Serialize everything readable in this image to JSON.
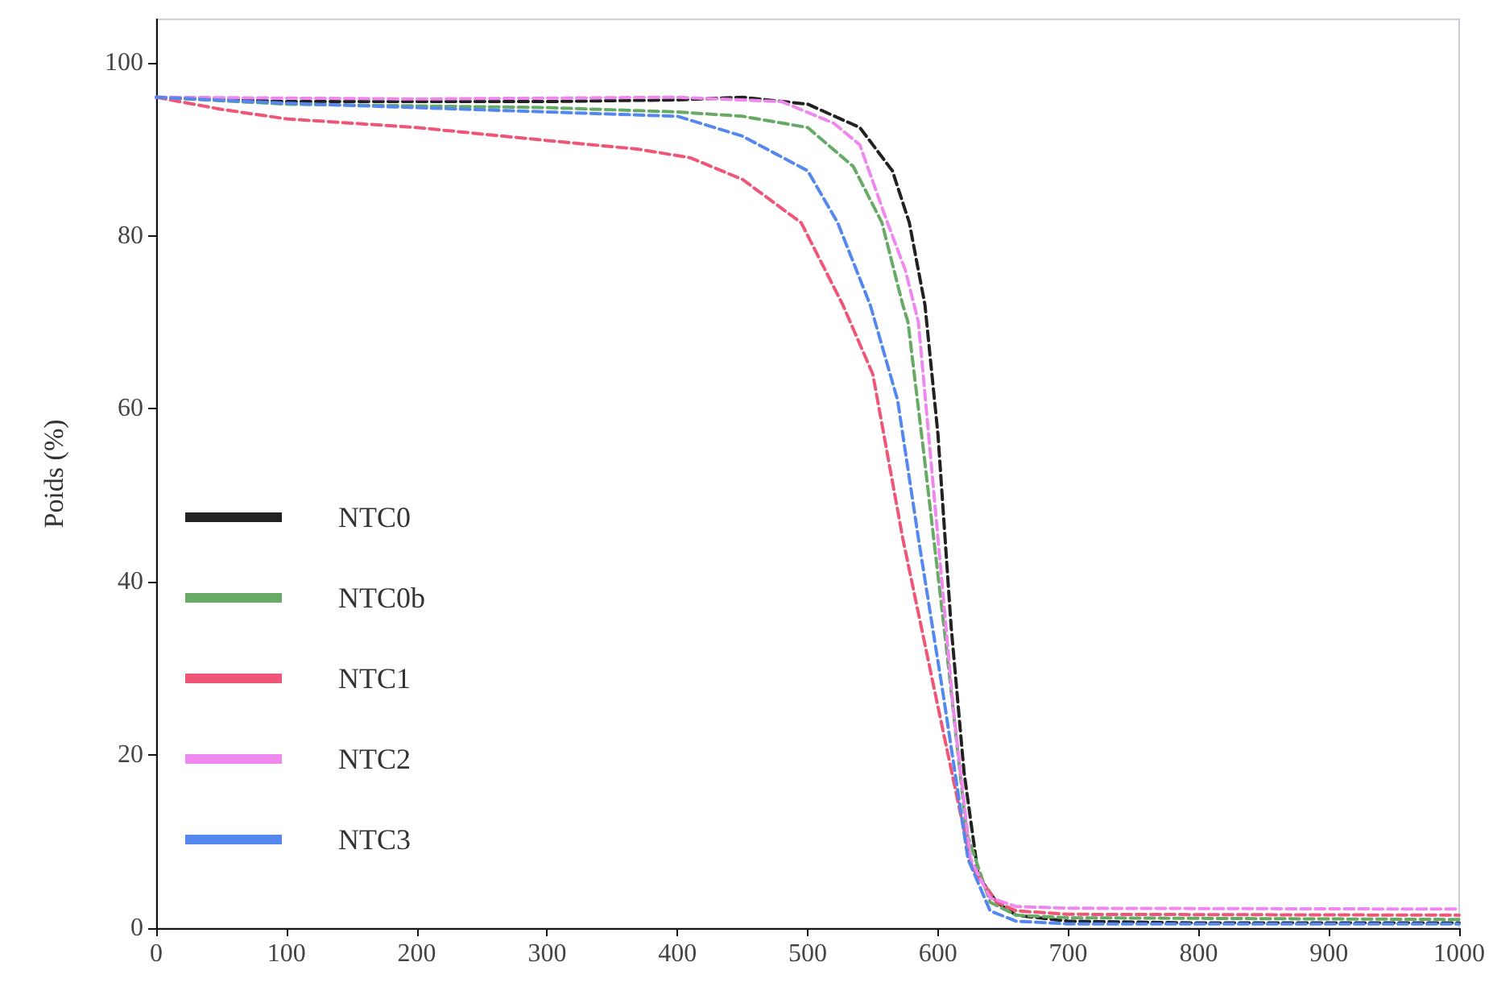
{
  "chart_data": {
    "type": "line",
    "ylabel": "Poids (%)",
    "xlim": [
      0,
      1000
    ],
    "xticks": [
      0,
      100,
      200,
      300,
      400,
      500,
      600,
      700,
      800,
      900,
      1000
    ],
    "ylim": [
      0,
      105
    ],
    "yticks": [
      0,
      20,
      40,
      60,
      80,
      100
    ],
    "grid": false,
    "legend": "bottom left",
    "line_style": "dashed",
    "marker": "none",
    "series": [
      {
        "name": "NTC0",
        "color": "#222222",
        "x": [
          0,
          100,
          200,
          300,
          400,
          450,
          500,
          540,
          565,
          578,
          590,
          600,
          610,
          620,
          631,
          645,
          660,
          700,
          800,
          1000
        ],
        "values": [
          96,
          95.5,
          95.5,
          95.5,
          95.7,
          96,
          95.2,
          92.5,
          87.5,
          81.5,
          72,
          57,
          35,
          18,
          6,
          3,
          1.5,
          0.8,
          0.6,
          0.6
        ]
      },
      {
        "name": "NTC0b",
        "color": "#66aa66",
        "x": [
          0,
          100,
          200,
          300,
          400,
          450,
          500,
          535,
          557,
          573,
          577,
          589,
          606,
          622,
          640,
          660,
          700,
          1000
        ],
        "values": [
          96,
          95.2,
          95,
          94.8,
          94.3,
          93.8,
          92.5,
          88,
          81.5,
          72,
          70,
          55,
          33,
          11,
          3,
          1.5,
          1.2,
          1
        ]
      },
      {
        "name": "NTC1",
        "color": "#ee5577",
        "x": [
          0,
          50,
          100,
          200,
          300,
          370,
          410,
          450,
          495,
          527,
          550,
          573,
          598,
          626,
          645,
          660,
          700,
          1000
        ],
        "values": [
          96,
          94.6,
          93.5,
          92.5,
          91,
          90,
          89,
          86.5,
          81.5,
          72,
          64,
          45,
          27,
          7,
          3,
          2,
          1.6,
          1.5
        ]
      },
      {
        "name": "NTC2",
        "color": "#ee88ee",
        "x": [
          0,
          200,
          400,
          480,
          520,
          540,
          560,
          575,
          585,
          600,
          612,
          625,
          640,
          660,
          700,
          1000
        ],
        "values": [
          96,
          95.8,
          96,
          95.5,
          93,
          90.5,
          82,
          76,
          70,
          45,
          25,
          8,
          3.5,
          2.5,
          2.3,
          2.2
        ]
      },
      {
        "name": "NTC3",
        "color": "#5588ee",
        "x": [
          0,
          100,
          200,
          300,
          400,
          450,
          500,
          523,
          548,
          569,
          585,
          604,
          623,
          640,
          660,
          700,
          1000
        ],
        "values": [
          96,
          95.3,
          94.8,
          94.3,
          93.8,
          91.5,
          87.5,
          81.5,
          72,
          61,
          45,
          27,
          8,
          2,
          0.8,
          0.5,
          0.5
        ]
      }
    ]
  }
}
